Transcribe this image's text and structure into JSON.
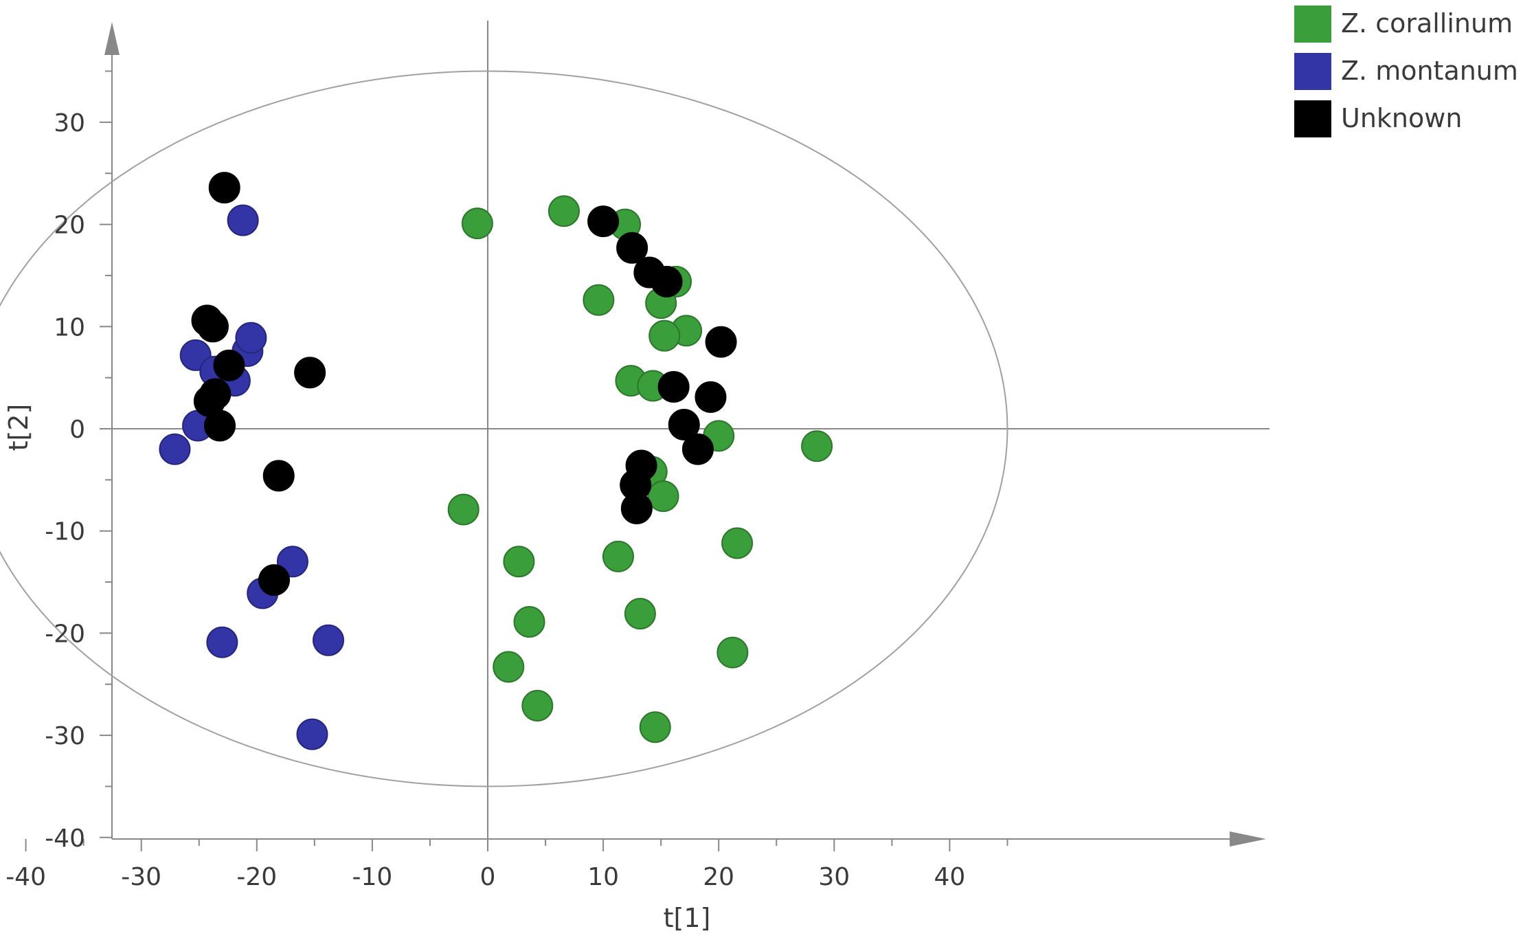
{
  "chart_data": {
    "type": "scatter",
    "title": "",
    "xlabel": "t[1]",
    "ylabel": "t[2]",
    "xlim": [
      -50,
      50
    ],
    "ylim": [
      -40,
      40
    ],
    "x_ticks": [
      -50,
      -40,
      -30,
      -20,
      -10,
      0,
      10,
      20,
      30,
      40
    ],
    "y_ticks": [
      -40,
      -30,
      -20,
      -10,
      0,
      10,
      20,
      30
    ],
    "grid": false,
    "legend_position": "top-right",
    "hotelling_ellipse": {
      "x_semi_axis": 45,
      "y_semi_axis": 35
    },
    "series": [
      {
        "name": "Z. corallinum",
        "color": "#3a9e3a",
        "points": [
          [
            -0.9,
            20.1
          ],
          [
            6.6,
            21.3
          ],
          [
            11.9,
            20.0
          ],
          [
            16.3,
            14.4
          ],
          [
            9.6,
            12.6
          ],
          [
            15.0,
            12.3
          ],
          [
            17.2,
            9.6
          ],
          [
            15.3,
            9.1
          ],
          [
            12.4,
            4.7
          ],
          [
            14.3,
            4.2
          ],
          [
            20.0,
            -0.7
          ],
          [
            28.5,
            -1.7
          ],
          [
            14.2,
            -4.2
          ],
          [
            15.2,
            -6.6
          ],
          [
            -2.1,
            -7.9
          ],
          [
            21.6,
            -11.2
          ],
          [
            11.3,
            -12.5
          ],
          [
            2.7,
            -13.0
          ],
          [
            13.2,
            -18.1
          ],
          [
            3.6,
            -18.9
          ],
          [
            21.2,
            -21.9
          ],
          [
            1.8,
            -23.3
          ],
          [
            4.3,
            -27.1
          ],
          [
            14.5,
            -29.2
          ]
        ]
      },
      {
        "name": "Z. montanum",
        "color": "#3334a5",
        "points": [
          [
            -21.2,
            20.4
          ],
          [
            -20.8,
            7.6
          ],
          [
            -20.5,
            8.9
          ],
          [
            -25.3,
            7.2
          ],
          [
            -23.6,
            5.6
          ],
          [
            -21.9,
            4.7
          ],
          [
            -25.1,
            0.3
          ],
          [
            -27.1,
            -2.0
          ],
          [
            -16.9,
            -13.0
          ],
          [
            -19.5,
            -16.1
          ],
          [
            -23.0,
            -20.9
          ],
          [
            -13.8,
            -20.7
          ],
          [
            -15.2,
            -29.9
          ]
        ]
      },
      {
        "name": "Unknown",
        "color": "#000000",
        "points": [
          [
            -22.8,
            23.6
          ],
          [
            -24.3,
            10.6
          ],
          [
            -23.8,
            10.0
          ],
          [
            -22.4,
            6.2
          ],
          [
            -15.4,
            5.5
          ],
          [
            -23.6,
            3.4
          ],
          [
            -24.1,
            2.7
          ],
          [
            -23.2,
            0.3
          ],
          [
            -18.1,
            -4.6
          ],
          [
            -18.5,
            -14.8
          ],
          [
            10.0,
            20.3
          ],
          [
            12.5,
            17.7
          ],
          [
            14.0,
            15.3
          ],
          [
            15.5,
            14.4
          ],
          [
            20.2,
            8.5
          ],
          [
            16.1,
            4.1
          ],
          [
            19.3,
            3.1
          ],
          [
            17.0,
            0.4
          ],
          [
            18.2,
            -2.0
          ],
          [
            13.3,
            -3.6
          ],
          [
            12.8,
            -5.5
          ],
          [
            12.9,
            -7.8
          ]
        ]
      }
    ]
  }
}
